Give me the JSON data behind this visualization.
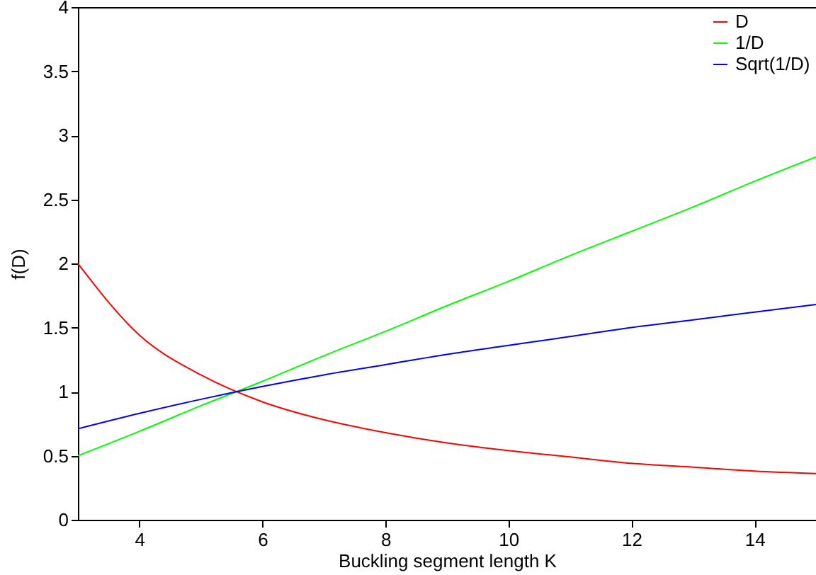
{
  "chart_data": {
    "type": "line",
    "xlabel": "Buckling segment length K",
    "ylabel": "f(D)",
    "x": [
      3,
      4,
      5,
      6,
      7,
      8,
      9,
      10,
      11,
      12,
      13,
      14,
      15
    ],
    "series": [
      {
        "name": "D",
        "color": "#ff0000",
        "values": [
          2.0,
          1.44,
          1.13,
          0.92,
          0.78,
          0.68,
          0.6,
          0.54,
          0.49,
          0.44,
          0.41,
          0.38,
          0.36
        ]
      },
      {
        "name": "1/D",
        "color": "#00ff00",
        "values": [
          0.5,
          0.69,
          0.89,
          1.08,
          1.28,
          1.47,
          1.67,
          1.86,
          2.06,
          2.25,
          2.44,
          2.64,
          2.83
        ]
      },
      {
        "name": "Sqrt(1/D)",
        "color": "#0000ff",
        "values": [
          0.71,
          0.83,
          0.94,
          1.04,
          1.13,
          1.21,
          1.29,
          1.36,
          1.43,
          1.5,
          1.56,
          1.62,
          1.68
        ]
      }
    ],
    "xlim": [
      3,
      15
    ],
    "xticks": [
      4,
      6,
      8,
      10,
      12,
      14
    ],
    "ylim": [
      0,
      4
    ],
    "yticks": [
      0,
      0.5,
      1,
      1.5,
      2,
      2.5,
      3,
      3.5,
      4
    ],
    "grid": false,
    "legend": "top right",
    "marker": "none",
    "line_style": "solid"
  }
}
